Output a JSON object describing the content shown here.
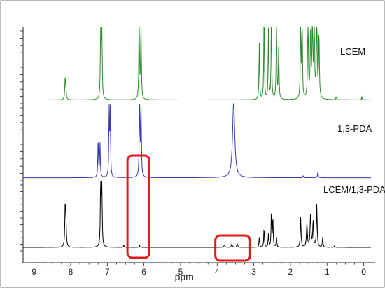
{
  "chart_data": {
    "type": "line",
    "title": "",
    "xlabel": "ppm",
    "ylabel": "",
    "xlim": [
      9.3,
      -0.2
    ],
    "x_reversed": true,
    "x_ticks": [
      "9",
      "8",
      "7",
      "6",
      "5",
      "4",
      "3",
      "2",
      "1",
      "0"
    ],
    "grid": false,
    "series": [
      {
        "name": "LCEM",
        "color": "#2e8b2e",
        "baseline_level": 0.05,
        "peaks": [
          {
            "ppm": 8.15,
            "height": 0.3,
            "width": 0.012
          },
          {
            "ppm": 8.13,
            "height": 0.1,
            "width": 0.012
          },
          {
            "ppm": 7.18,
            "height": 1.2,
            "width": 0.01
          },
          {
            "ppm": 7.15,
            "height": 1.2,
            "width": 0.01
          },
          {
            "ppm": 6.13,
            "height": 1.2,
            "width": 0.01
          },
          {
            "ppm": 6.08,
            "height": 1.2,
            "width": 0.01
          },
          {
            "ppm": 2.85,
            "height": 0.78,
            "width": 0.01
          },
          {
            "ppm": 2.72,
            "height": 1.2,
            "width": 0.01
          },
          {
            "ppm": 2.6,
            "height": 0.95,
            "width": 0.01
          },
          {
            "ppm": 2.52,
            "height": 1.2,
            "width": 0.01
          },
          {
            "ppm": 2.38,
            "height": 1.2,
            "width": 0.01
          },
          {
            "ppm": 2.32,
            "height": 0.75,
            "width": 0.01
          },
          {
            "ppm": 1.72,
            "height": 1.2,
            "width": 0.01
          },
          {
            "ppm": 1.68,
            "height": 1.2,
            "width": 0.01
          },
          {
            "ppm": 1.52,
            "height": 1.2,
            "width": 0.012
          },
          {
            "ppm": 1.45,
            "height": 0.9,
            "width": 0.012
          },
          {
            "ppm": 1.4,
            "height": 1.2,
            "width": 0.012
          },
          {
            "ppm": 1.35,
            "height": 1.2,
            "width": 0.012
          },
          {
            "ppm": 1.28,
            "height": 1.2,
            "width": 0.012
          },
          {
            "ppm": 1.22,
            "height": 0.9,
            "width": 0.012
          },
          {
            "ppm": 0.75,
            "height": 0.04,
            "width": 0.01
          },
          {
            "ppm": 0.05,
            "height": 0.04,
            "width": 0.01
          }
        ]
      },
      {
        "name": "1,3-PDA",
        "color": "#3a3ab8",
        "baseline_level": 0.04,
        "peaks": [
          {
            "ppm": 7.25,
            "height": 0.55,
            "width": 0.01
          },
          {
            "ppm": 7.2,
            "height": 0.5,
            "width": 0.01
          },
          {
            "ppm": 6.95,
            "height": 0.95,
            "width": 0.01
          },
          {
            "ppm": 6.92,
            "height": 0.9,
            "width": 0.01
          },
          {
            "ppm": 6.12,
            "height": 1.2,
            "width": 0.01
          },
          {
            "ppm": 6.08,
            "height": 1.2,
            "width": 0.01
          },
          {
            "ppm": 3.55,
            "height": 1.05,
            "width": 0.035
          },
          {
            "ppm": 1.65,
            "height": 0.03,
            "width": 0.01
          },
          {
            "ppm": 1.25,
            "height": 0.09,
            "width": 0.01
          }
        ]
      },
      {
        "name": "LCEM/1,3-PDA",
        "color": "#000000",
        "baseline_level": 0.05,
        "peaks": [
          {
            "ppm": 8.15,
            "height": 0.62,
            "width": 0.012
          },
          {
            "ppm": 8.13,
            "height": 0.35,
            "width": 0.012
          },
          {
            "ppm": 7.18,
            "height": 1.2,
            "width": 0.01
          },
          {
            "ppm": 7.15,
            "height": 1.1,
            "width": 0.01
          },
          {
            "ppm": 6.55,
            "height": 0.03,
            "width": 0.01
          },
          {
            "ppm": 6.12,
            "height": 0.03,
            "width": 0.01
          },
          {
            "ppm": 3.8,
            "height": 0.04,
            "width": 0.015
          },
          {
            "ppm": 3.6,
            "height": 0.05,
            "width": 0.015
          },
          {
            "ppm": 3.45,
            "height": 0.05,
            "width": 0.015
          },
          {
            "ppm": 2.85,
            "height": 0.15,
            "width": 0.01
          },
          {
            "ppm": 2.72,
            "height": 0.3,
            "width": 0.01
          },
          {
            "ppm": 2.6,
            "height": 0.2,
            "width": 0.01
          },
          {
            "ppm": 2.52,
            "height": 0.55,
            "width": 0.01
          },
          {
            "ppm": 2.48,
            "height": 0.45,
            "width": 0.01
          },
          {
            "ppm": 2.38,
            "height": 0.15,
            "width": 0.01
          },
          {
            "ppm": 1.72,
            "height": 0.45,
            "width": 0.012
          },
          {
            "ppm": 1.55,
            "height": 0.35,
            "width": 0.015
          },
          {
            "ppm": 1.45,
            "height": 0.5,
            "width": 0.015
          },
          {
            "ppm": 1.38,
            "height": 0.4,
            "width": 0.012
          },
          {
            "ppm": 1.28,
            "height": 0.65,
            "width": 0.012
          },
          {
            "ppm": 1.12,
            "height": 0.15,
            "width": 0.01
          },
          {
            "ppm": 0.8,
            "height": 0.02,
            "width": 0.01
          }
        ]
      }
    ],
    "annotations": [
      {
        "type": "rounded-rectangle",
        "color": "#e11a1a",
        "ppm_range": [
          6.45,
          5.85
        ]
      },
      {
        "type": "rounded-rectangle",
        "color": "#e11a1a",
        "ppm_range": [
          4.05,
          3.1
        ]
      }
    ]
  }
}
